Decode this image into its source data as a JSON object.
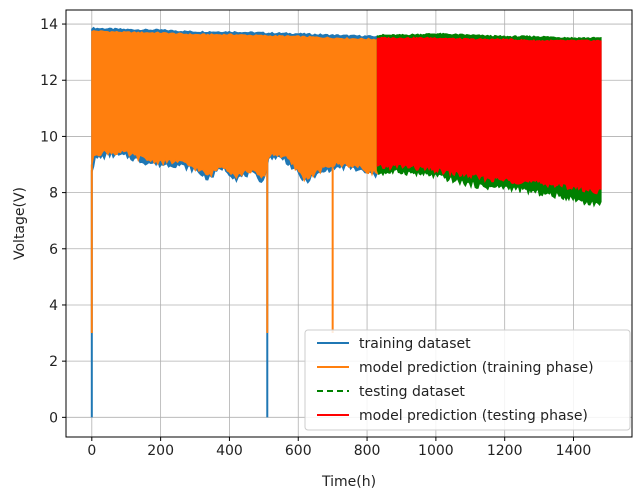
{
  "chart_data": {
    "type": "line",
    "title": "",
    "xlabel": "Time(h)",
    "ylabel": "Voltage(V)",
    "xlim": [
      -75,
      1570
    ],
    "ylim": [
      -0.7,
      14.5
    ],
    "xticks": [
      0,
      200,
      400,
      600,
      800,
      1000,
      1200,
      1400
    ],
    "yticks": [
      0,
      2,
      4,
      6,
      8,
      10,
      12,
      14
    ],
    "grid": true,
    "legend_position": "lower-right",
    "series": [
      {
        "name": "training dataset",
        "color": "#1f77b4",
        "style": "solid",
        "x_range": [
          0,
          830
        ],
        "upper": {
          "x": [
            0,
            100,
            200,
            300,
            400,
            500,
            600,
            700,
            830
          ],
          "y": [
            13.85,
            13.8,
            13.78,
            13.72,
            13.72,
            13.68,
            13.65,
            13.6,
            13.55
          ]
        },
        "lower": {
          "x": [
            0,
            10,
            50,
            100,
            150,
            200,
            250,
            300,
            340,
            380,
            420,
            460,
            500,
            510,
            520,
            560,
            590,
            620,
            650,
            700,
            750,
            800,
            830
          ],
          "y": [
            8.8,
            9.2,
            9.35,
            9.3,
            9.1,
            9.0,
            9.0,
            8.8,
            8.5,
            8.9,
            8.5,
            8.7,
            8.4,
            9.0,
            9.3,
            9.2,
            8.8,
            8.4,
            8.6,
            8.9,
            8.9,
            8.7,
            8.6
          ]
        },
        "dips": [
          {
            "x": 0,
            "y": 0
          },
          {
            "x": 510,
            "y": 0
          }
        ]
      },
      {
        "name": "model prediction (training phase)",
        "color": "#ff7f0e",
        "style": "solid",
        "x_range": [
          0,
          830
        ],
        "upper": {
          "x": [
            0,
            100,
            200,
            300,
            400,
            500,
            600,
            700,
            830
          ],
          "y": [
            13.75,
            13.7,
            13.68,
            13.62,
            13.62,
            13.58,
            13.55,
            13.5,
            13.45
          ]
        },
        "lower": {
          "x": [
            0,
            10,
            50,
            100,
            150,
            200,
            250,
            300,
            340,
            380,
            420,
            460,
            500,
            510,
            520,
            560,
            590,
            620,
            650,
            700,
            750,
            800,
            830
          ],
          "y": [
            9.0,
            9.4,
            9.45,
            9.4,
            9.2,
            9.1,
            9.1,
            8.9,
            8.6,
            9.0,
            8.6,
            8.8,
            8.5,
            9.1,
            9.4,
            9.3,
            8.9,
            8.5,
            8.7,
            9.0,
            9.0,
            8.8,
            8.7
          ]
        },
        "dips": [
          {
            "x": 0,
            "y": 3.0
          },
          {
            "x": 510,
            "y": 3.0
          },
          {
            "x": 700,
            "y": 3.0
          }
        ]
      },
      {
        "name": "testing dataset",
        "color": "#008000",
        "style": "dashed",
        "x_range": [
          830,
          1480
        ],
        "upper": {
          "x": [
            830,
            900,
            1000,
            1100,
            1200,
            1300,
            1400,
            1480
          ],
          "y": [
            13.6,
            13.6,
            13.65,
            13.6,
            13.55,
            13.55,
            13.5,
            13.5
          ]
        },
        "lower": {
          "x": [
            830,
            900,
            1000,
            1100,
            1150,
            1200,
            1300,
            1400,
            1440,
            1480
          ],
          "y": [
            8.7,
            8.75,
            8.6,
            8.3,
            8.2,
            8.2,
            8.0,
            7.8,
            7.65,
            7.6
          ]
        }
      },
      {
        "name": "model prediction (testing phase)",
        "color": "#ff0000",
        "style": "solid",
        "x_range": [
          830,
          1480
        ],
        "upper": {
          "x": [
            830,
            900,
            1000,
            1100,
            1200,
            1300,
            1400,
            1480
          ],
          "y": [
            13.5,
            13.5,
            13.5,
            13.45,
            13.45,
            13.4,
            13.4,
            13.4
          ]
        },
        "lower": {
          "x": [
            830,
            900,
            1000,
            1100,
            1150,
            1200,
            1300,
            1400,
            1440,
            1480
          ],
          "y": [
            8.9,
            8.95,
            8.8,
            8.6,
            8.5,
            8.45,
            8.35,
            8.2,
            8.1,
            8.05
          ]
        }
      }
    ]
  }
}
